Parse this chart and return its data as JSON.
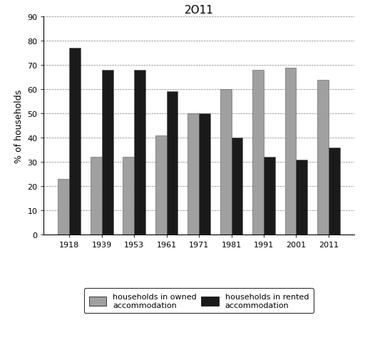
{
  "title": "2O11",
  "years": [
    "1918",
    "1939",
    "1953",
    "1961",
    "1971",
    "1981",
    "1991",
    "2001",
    "2011"
  ],
  "owned": [
    23,
    32,
    32,
    41,
    50,
    60,
    68,
    69,
    64
  ],
  "rented": [
    77,
    68,
    68,
    59,
    50,
    40,
    32,
    31,
    36
  ],
  "owned_color": "#a0a0a0",
  "rented_color": "#1a1a1a",
  "ylabel": "% of households",
  "ylim": [
    0,
    90
  ],
  "yticks": [
    0,
    10,
    20,
    30,
    40,
    50,
    60,
    70,
    80,
    90
  ],
  "legend_owned": "households in owned\naccommodation",
  "legend_rented": "households in rented\naccommodation",
  "bar_width": 0.35,
  "title_fontsize": 11,
  "axis_fontsize": 9,
  "tick_fontsize": 8,
  "legend_fontsize": 8
}
